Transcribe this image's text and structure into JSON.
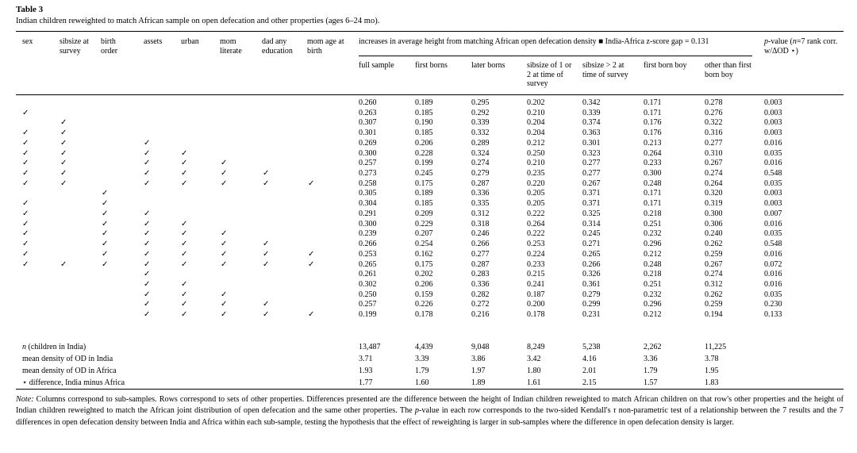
{
  "title": "Table 3",
  "subtitle": "Indian children reweighted to match African sample on open defecation and other properties (ages 6–24 mo).",
  "header": {
    "properties": [
      "sex",
      "sibsize at survey",
      "birth order",
      "assets",
      "urban",
      "mom literate",
      "dad any education",
      "mom age at birth"
    ],
    "group_title": "increases in average height from matching African open defecation density ■ India-Africa z-score gap = 0.131",
    "value_columns": [
      "full sample",
      "first borns",
      "later borns",
      "sibsize of 1 or 2 at time of survey",
      "sibsize > 2 at time of survey",
      "first born boy",
      "other than first born boy"
    ],
    "pvalue": {
      "p": "p",
      "r1": "-value (",
      "n": "n",
      "r2": "=7 rank corr. w/ΔOD ⋆)"
    }
  },
  "rows": [
    {
      "checks": [
        "",
        "",
        "",
        "",
        "",
        "",
        "",
        ""
      ],
      "values": [
        "0.260",
        "0.189",
        "0.295",
        "0.202",
        "0.342",
        "0.171",
        "0.278"
      ],
      "p": "0.003"
    },
    {
      "checks": [
        "✓",
        "",
        "",
        "",
        "",
        "",
        "",
        ""
      ],
      "values": [
        "0.263",
        "0.185",
        "0.292",
        "0.210",
        "0.339",
        "0.171",
        "0.276"
      ],
      "p": "0.003"
    },
    {
      "checks": [
        "",
        "✓",
        "",
        "",
        "",
        "",
        "",
        ""
      ],
      "values": [
        "0.307",
        "0.190",
        "0.339",
        "0.204",
        "0.374",
        "0.176",
        "0.322"
      ],
      "p": "0.003"
    },
    {
      "checks": [
        "✓",
        "✓",
        "",
        "",
        "",
        "",
        "",
        ""
      ],
      "values": [
        "0.301",
        "0.185",
        "0.332",
        "0.204",
        "0.363",
        "0.176",
        "0.316"
      ],
      "p": "0.003"
    },
    {
      "checks": [
        "✓",
        "✓",
        "",
        "✓",
        "",
        "",
        "",
        ""
      ],
      "values": [
        "0.269",
        "0.206",
        "0.289",
        "0.212",
        "0.301",
        "0.213",
        "0.277"
      ],
      "p": "0.016"
    },
    {
      "checks": [
        "✓",
        "✓",
        "",
        "✓",
        "✓",
        "",
        "",
        ""
      ],
      "values": [
        "0.300",
        "0.228",
        "0.324",
        "0.250",
        "0.323",
        "0.264",
        "0.310"
      ],
      "p": "0.035"
    },
    {
      "checks": [
        "✓",
        "✓",
        "",
        "✓",
        "✓",
        "✓",
        "",
        ""
      ],
      "values": [
        "0.257",
        "0.199",
        "0.274",
        "0.210",
        "0.277",
        "0.233",
        "0.267"
      ],
      "p": "0.016"
    },
    {
      "checks": [
        "✓",
        "✓",
        "",
        "✓",
        "✓",
        "✓",
        "✓",
        ""
      ],
      "values": [
        "0.273",
        "0.245",
        "0.279",
        "0.235",
        "0.277",
        "0.300",
        "0.274"
      ],
      "p": "0.548"
    },
    {
      "checks": [
        "✓",
        "✓",
        "",
        "✓",
        "✓",
        "✓",
        "✓",
        "✓"
      ],
      "values": [
        "0.258",
        "0.175",
        "0.287",
        "0.220",
        "0.267",
        "0.248",
        "0.264"
      ],
      "p": "0.035"
    },
    {
      "checks": [
        "",
        "",
        "✓",
        "",
        "",
        "",
        "",
        ""
      ],
      "values": [
        "0.305",
        "0.189",
        "0.336",
        "0.205",
        "0.371",
        "0.171",
        "0.320"
      ],
      "p": "0.003"
    },
    {
      "checks": [
        "✓",
        "",
        "✓",
        "",
        "",
        "",
        "",
        ""
      ],
      "values": [
        "0.304",
        "0.185",
        "0.335",
        "0.205",
        "0.371",
        "0.171",
        "0.319"
      ],
      "p": "0.003"
    },
    {
      "checks": [
        "✓",
        "",
        "✓",
        "✓",
        "",
        "",
        "",
        ""
      ],
      "values": [
        "0.291",
        "0.209",
        "0.312",
        "0.222",
        "0.325",
        "0.218",
        "0.300"
      ],
      "p": "0.007"
    },
    {
      "checks": [
        "✓",
        "",
        "✓",
        "✓",
        "✓",
        "",
        "",
        ""
      ],
      "values": [
        "0.300",
        "0.229",
        "0.318",
        "0.264",
        "0.314",
        "0.251",
        "0.306"
      ],
      "p": "0.016"
    },
    {
      "checks": [
        "✓",
        "",
        "✓",
        "✓",
        "✓",
        "✓",
        "",
        ""
      ],
      "values": [
        "0.239",
        "0.207",
        "0.246",
        "0.222",
        "0.245",
        "0.232",
        "0.240"
      ],
      "p": "0.035"
    },
    {
      "checks": [
        "✓",
        "",
        "✓",
        "✓",
        "✓",
        "✓",
        "✓",
        ""
      ],
      "values": [
        "0.266",
        "0.254",
        "0.266",
        "0.253",
        "0.271",
        "0.296",
        "0.262"
      ],
      "p": "0.548"
    },
    {
      "checks": [
        "✓",
        "",
        "✓",
        "✓",
        "✓",
        "✓",
        "✓",
        "✓"
      ],
      "values": [
        "0.253",
        "0.162",
        "0.277",
        "0.224",
        "0.265",
        "0.212",
        "0.259"
      ],
      "p": "0.016"
    },
    {
      "checks": [
        "✓",
        "✓",
        "✓",
        "✓",
        "✓",
        "✓",
        "✓",
        "✓"
      ],
      "values": [
        "0.265",
        "0.175",
        "0.287",
        "0.233",
        "0.266",
        "0.248",
        "0.267"
      ],
      "p": "0.072"
    },
    {
      "checks": [
        "",
        "",
        "",
        "✓",
        "",
        "",
        "",
        ""
      ],
      "values": [
        "0.261",
        "0.202",
        "0.283",
        "0.215",
        "0.326",
        "0.218",
        "0.274"
      ],
      "p": "0.016"
    },
    {
      "checks": [
        "",
        "",
        "",
        "✓",
        "✓",
        "",
        "",
        ""
      ],
      "values": [
        "0.302",
        "0.206",
        "0.336",
        "0.241",
        "0.361",
        "0.251",
        "0.312"
      ],
      "p": "0.016"
    },
    {
      "checks": [
        "",
        "",
        "",
        "✓",
        "✓",
        "✓",
        "",
        ""
      ],
      "values": [
        "0.250",
        "0.159",
        "0.282",
        "0.187",
        "0.279",
        "0.232",
        "0.262"
      ],
      "p": "0.035"
    },
    {
      "checks": [
        "",
        "",
        "",
        "✓",
        "✓",
        "✓",
        "✓",
        ""
      ],
      "values": [
        "0.257",
        "0.226",
        "0.272",
        "0.200",
        "0.299",
        "0.296",
        "0.259"
      ],
      "p": "0.230"
    },
    {
      "checks": [
        "",
        "",
        "",
        "✓",
        "✓",
        "✓",
        "✓",
        "✓"
      ],
      "values": [
        "0.199",
        "0.178",
        "0.216",
        "0.178",
        "0.231",
        "0.212",
        "0.194"
      ],
      "p": "0.133"
    }
  ],
  "summary_rows": [
    {
      "label_italic": "n",
      "label_rest": " (children in India)",
      "values": [
        "13,487",
        "4,439",
        "9,048",
        "8,249",
        "5,238",
        "2,262",
        "11,225"
      ]
    },
    {
      "label_italic": "",
      "label_rest": "mean density of OD in India",
      "values": [
        "3.71",
        "3.39",
        "3.86",
        "3.42",
        "4.16",
        "3.36",
        "3.78"
      ]
    },
    {
      "label_italic": "",
      "label_rest": "mean density of OD in Africa",
      "values": [
        "1.93",
        "1.79",
        "1.97",
        "1.80",
        "2.01",
        "1.79",
        "1.95"
      ]
    },
    {
      "label_italic": "",
      "label_rest": "⋆ difference, India minus Africa",
      "values": [
        "1.77",
        "1.60",
        "1.89",
        "1.61",
        "2.15",
        "1.57",
        "1.83"
      ]
    }
  ],
  "note": {
    "label": "Note:",
    "t1": " Columns correspond to sub-samples. Rows correspond to sets of other properties. Differences presented are the difference between the height of Indian children reweighted to match African children on that row's other properties and the height of Indian children reweighted to match the African joint distribution of open defecation and the same other properties. The ",
    "p": "p",
    "t2": "-value in each row corresponds to the two-sided Kendall's ",
    "tau": "τ",
    "t3": " non-parametric test of a relationship between the 7 results and the 7 differences in open defecation density between India and Africa within each sub-sample, testing the hypothesis that the effect of reweighting is larger in sub-samples where the difference in open defecation density is larger."
  }
}
